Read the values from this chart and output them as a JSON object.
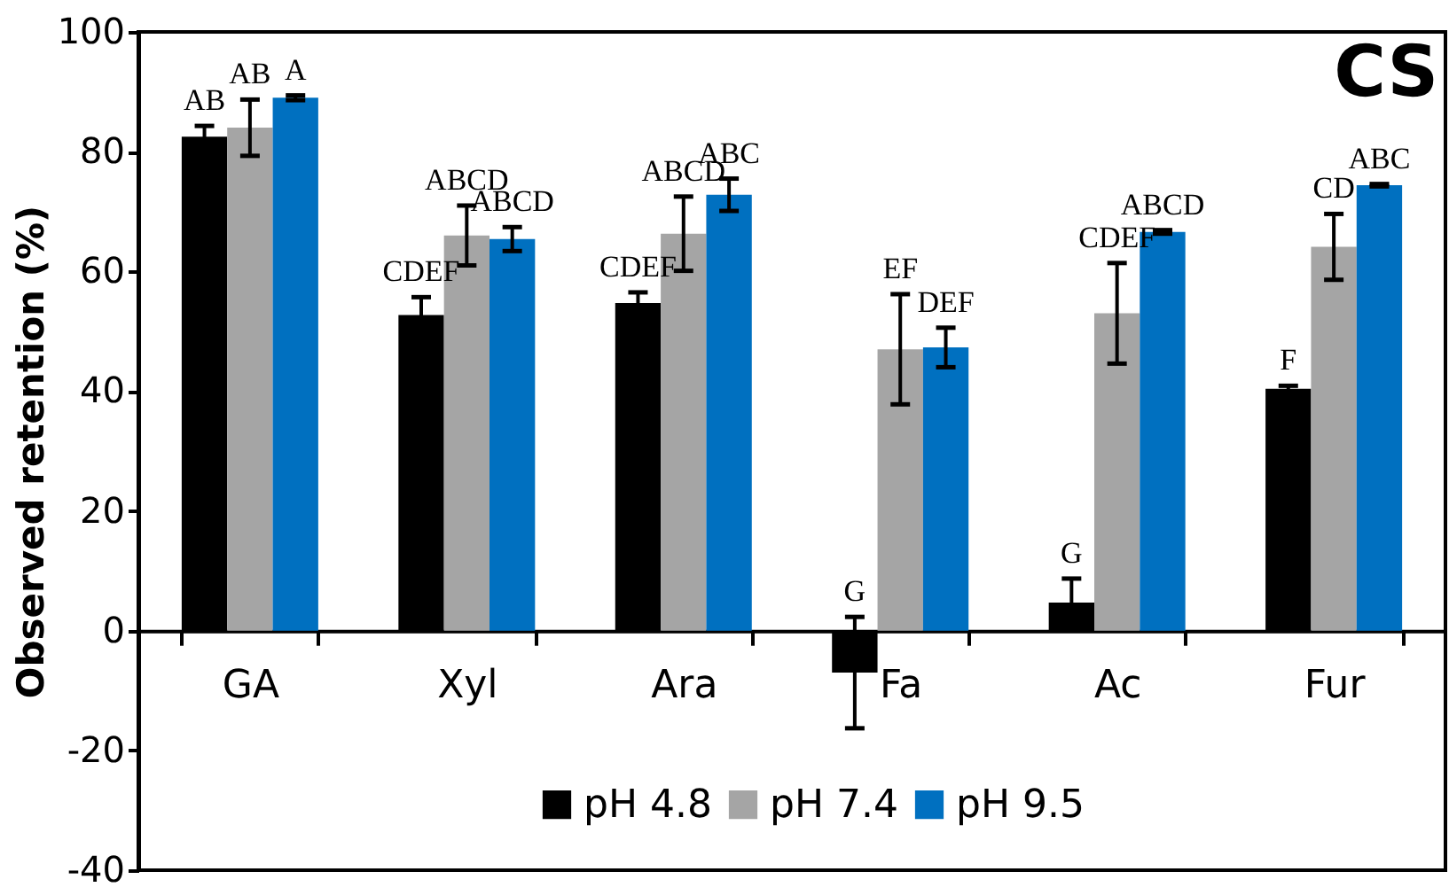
{
  "chart_data": {
    "type": "bar",
    "title": "CS",
    "ylabel": "Observed retention (%)",
    "categories": [
      "GA",
      "Xyl",
      "Ara",
      "Fa",
      "Ac",
      "Fur"
    ],
    "series": [
      {
        "name": "pH 4.8",
        "color": "#000000",
        "values": [
          82.5,
          52.7,
          54.7,
          -7,
          4.7,
          40.4
        ],
        "errors": [
          1.8,
          3,
          1.8,
          9.3,
          4,
          0.5
        ],
        "value_labels": [
          "AB",
          "CDEF",
          "CDEF",
          "G",
          "G",
          "F"
        ]
      },
      {
        "name": "pH 7.4",
        "color": "#a5a5a5",
        "values": [
          84,
          66,
          66.3,
          47,
          53,
          64.1
        ],
        "errors": [
          4.7,
          5,
          6.2,
          9.2,
          8.4,
          5.5
        ],
        "value_labels": [
          "AB",
          "ABCD",
          "ABCD",
          "EF",
          "CDEF",
          "CD"
        ]
      },
      {
        "name": "pH 9.5",
        "color": "#0070c0",
        "values": [
          89,
          65.4,
          72.8,
          47.3,
          66.6,
          74.4
        ],
        "errors": [
          0.4,
          2,
          2.7,
          3.3,
          0.3,
          0.2
        ],
        "value_labels": [
          "A",
          "ABCD",
          "ABC",
          "DEF",
          "ABCD",
          "ABC"
        ]
      }
    ],
    "ylim": [
      -40,
      100
    ],
    "yticks": [
      -40,
      -20,
      0,
      20,
      40,
      60,
      80,
      100
    ],
    "legend": "bottom"
  }
}
